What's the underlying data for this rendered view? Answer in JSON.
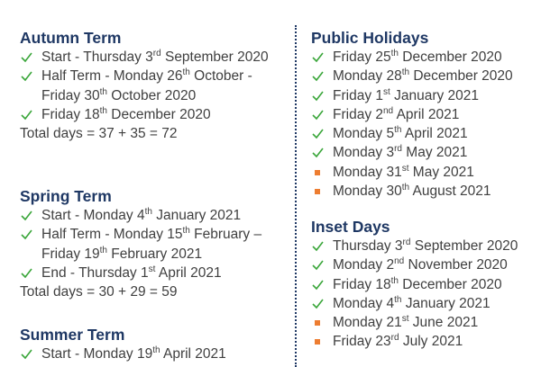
{
  "left": [
    {
      "heading": "Autumn Term",
      "items": [
        {
          "bullet": "check",
          "parts": [
            "Start - Thursday 3",
            "rd",
            " September 2020"
          ]
        },
        {
          "bullet": "check",
          "parts": [
            "Half Term - Monday 26",
            "th",
            " October - Friday 30",
            "th",
            " October 2020"
          ]
        },
        {
          "bullet": "check",
          "parts": [
            "Friday 18",
            "th",
            " December 2020"
          ]
        }
      ],
      "total": "Total days = 37 + 35 = 72"
    },
    {
      "heading": "Spring Term",
      "items": [
        {
          "bullet": "check",
          "parts": [
            "Start - Monday 4",
            "th",
            " January 2021"
          ]
        },
        {
          "bullet": "check",
          "parts": [
            "Half Term - Monday 15",
            "th",
            " February – Friday 19",
            "th",
            " February 2021"
          ]
        },
        {
          "bullet": "check",
          "parts": [
            "End - Thursday 1",
            "st",
            " April 2021"
          ]
        }
      ],
      "total": "Total days = 30 + 29 = 59"
    },
    {
      "heading": "Summer Term",
      "items": [
        {
          "bullet": "check",
          "parts": [
            "Start - Monday 19",
            "th",
            " April 2021"
          ]
        }
      ]
    }
  ],
  "right": [
    {
      "heading": "Public Holidays",
      "items": [
        {
          "bullet": "check",
          "parts": [
            "Friday 25",
            "th",
            " December 2020"
          ]
        },
        {
          "bullet": "check",
          "parts": [
            "Monday 28",
            "th",
            " December 2020"
          ]
        },
        {
          "bullet": "check",
          "parts": [
            "Friday 1",
            "st",
            " January 2021"
          ]
        },
        {
          "bullet": "check",
          "parts": [
            "Friday 2",
            "nd",
            " April 2021"
          ]
        },
        {
          "bullet": "check",
          "parts": [
            "Monday 5",
            "th",
            " April 2021"
          ]
        },
        {
          "bullet": "check",
          "parts": [
            "Monday 3",
            "rd",
            " May 2021"
          ]
        },
        {
          "bullet": "square",
          "parts": [
            "Monday 31",
            "st",
            " May 2021"
          ]
        },
        {
          "bullet": "square",
          "parts": [
            "Monday 30",
            "th",
            " August 2021"
          ]
        }
      ]
    },
    {
      "heading": "Inset Days",
      "items": [
        {
          "bullet": "check",
          "parts": [
            "Thursday 3",
            "rd",
            " September 2020"
          ]
        },
        {
          "bullet": "check",
          "parts": [
            "Monday 2",
            "nd",
            " November 2020"
          ]
        },
        {
          "bullet": "check",
          "parts": [
            "Friday 18",
            "th",
            " December 2020"
          ]
        },
        {
          "bullet": "check",
          "parts": [
            "Monday 4",
            "th",
            " January 2021"
          ]
        },
        {
          "bullet": "square",
          "parts": [
            "Monday 21",
            "st",
            " June 2021"
          ]
        },
        {
          "bullet": "square",
          "parts": [
            "Friday 23",
            "rd",
            " July 2021"
          ]
        }
      ]
    }
  ]
}
